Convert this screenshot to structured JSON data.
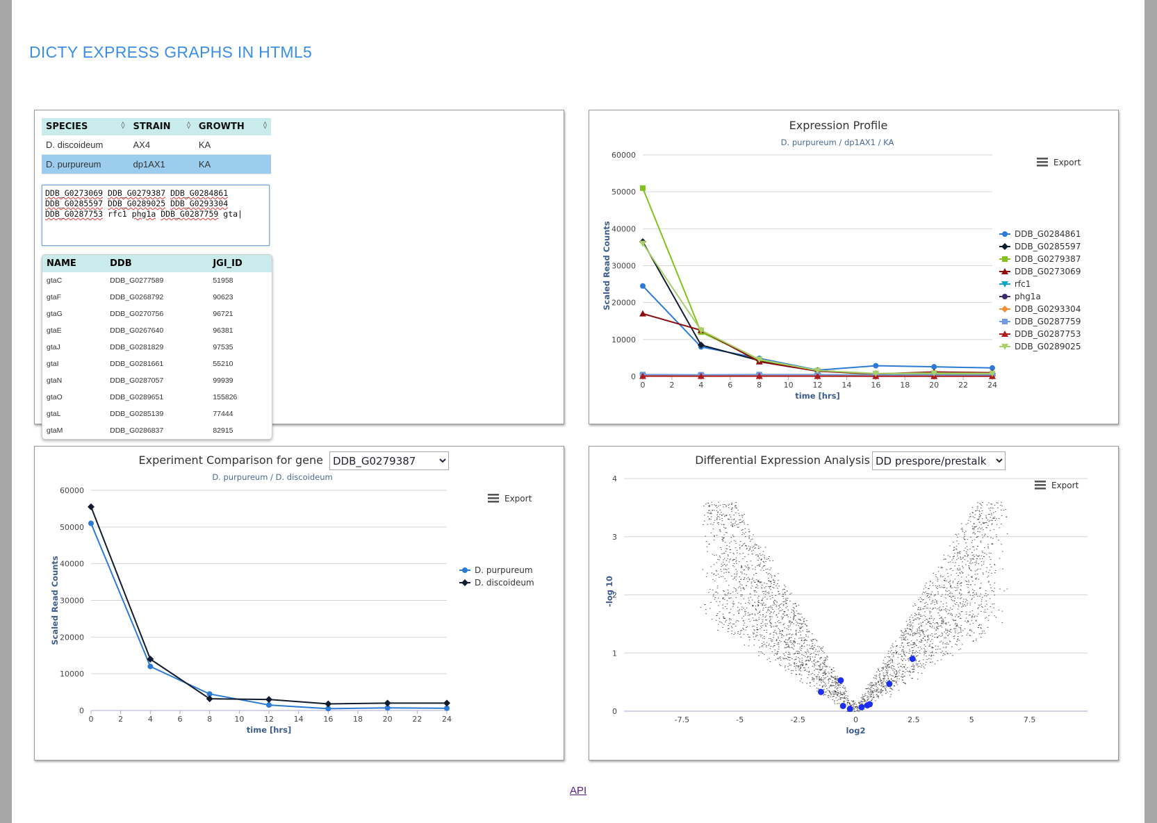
{
  "page": {
    "title": "DICTY EXPRESS GRAPHS IN HTML5",
    "api_link": "API"
  },
  "species_table": {
    "headers": [
      "SPECIES",
      "STRAIN",
      "GROWTH"
    ],
    "rows": [
      {
        "species": "D. discoideum",
        "strain": "AX4",
        "growth": "KA"
      },
      {
        "species": "D. purpureum",
        "strain": "dp1AX1",
        "growth": "KA"
      }
    ],
    "selected_row": 1
  },
  "gene_input": {
    "tokens": [
      "DDB_G0273069",
      "DDB_G0279387",
      "DDB_G0284861",
      "DDB_G0285597",
      "DDB_G0289025",
      "DDB_G0293304",
      "DDB_G0287753",
      "rfc1",
      "phg1a",
      "DDB_G0287759",
      "gta"
    ]
  },
  "gene_suggestions": {
    "headers": [
      "NAME",
      "DDB",
      "JGI_ID"
    ],
    "rows": [
      {
        "name": "gtaC",
        "ddb": "DDB_G0277589",
        "jgi": "51958"
      },
      {
        "name": "gtaF",
        "ddb": "DDB_G0268792",
        "jgi": "90623"
      },
      {
        "name": "gtaG",
        "ddb": "DDB_G0270756",
        "jgi": "96721"
      },
      {
        "name": "gtaE",
        "ddb": "DDB_G0267640",
        "jgi": "96381"
      },
      {
        "name": "gtaJ",
        "ddb": "DDB_G0281829",
        "jgi": "97535"
      },
      {
        "name": "gtaI",
        "ddb": "DDB_G0281661",
        "jgi": "55210"
      },
      {
        "name": "gtaN",
        "ddb": "DDB_G0287057",
        "jgi": "99939"
      },
      {
        "name": "gtaO",
        "ddb": "DDB_G0289651",
        "jgi": "155826"
      },
      {
        "name": "gtaL",
        "ddb": "DDB_G0285139",
        "jgi": "77444"
      },
      {
        "name": "gtaM",
        "ddb": "DDB_G0286837",
        "jgi": "82915"
      }
    ]
  },
  "export_label": "Export",
  "comparison": {
    "title_prefix": "Experiment Comparison for gene",
    "selected_gene": "DDB_G0279387"
  },
  "dea": {
    "title_prefix": "Differential Expression Analysis",
    "selected": "DD prespore/prestalk"
  },
  "colors": {
    "brand": "#3a8ee6",
    "axis_title": "#3b5c8c"
  },
  "chart_data": [
    {
      "type": "line",
      "title": "Expression Profile",
      "subtitle": "D. purpureum / dp1AX1 / KA",
      "xlabel": "time [hrs]",
      "ylabel": "Scaled Read Counts",
      "xlim": [
        0,
        24
      ],
      "ylim": [
        0,
        60000
      ],
      "x_ticks": [
        0,
        2,
        4,
        6,
        8,
        10,
        12,
        14,
        16,
        18,
        20,
        22,
        24
      ],
      "y_ticks": [
        0,
        10000,
        20000,
        30000,
        40000,
        50000,
        60000
      ],
      "x": [
        0,
        4,
        8,
        12,
        16,
        20,
        24
      ],
      "legend": "right",
      "series": [
        {
          "name": "DDB_G0284861",
          "color": "#2b7bd6",
          "marker": "circle",
          "values": [
            24500,
            8000,
            4900,
            1700,
            2900,
            2600,
            2300
          ]
        },
        {
          "name": "DDB_G0285597",
          "color": "#111c2e",
          "marker": "diamond",
          "values": [
            36500,
            8500,
            4300,
            1600,
            700,
            900,
            800
          ]
        },
        {
          "name": "DDB_G0279387",
          "color": "#80c21b",
          "marker": "square",
          "values": [
            51000,
            12000,
            4500,
            1500,
            500,
            700,
            600
          ]
        },
        {
          "name": "DDB_G0273069",
          "color": "#8b0f0f",
          "marker": "triangle",
          "values": [
            17000,
            12500,
            4000,
            1400,
            700,
            1200,
            1000
          ]
        },
        {
          "name": "rfc1",
          "color": "#17a3c8",
          "marker": "triangle-down",
          "values": [
            150,
            130,
            120,
            100,
            90,
            90,
            80
          ]
        },
        {
          "name": "phg1a",
          "color": "#3c2a6b",
          "marker": "circle",
          "values": [
            200,
            180,
            160,
            140,
            120,
            110,
            100
          ]
        },
        {
          "name": "DDB_G0293304",
          "color": "#f28f34",
          "marker": "diamond",
          "values": [
            300,
            250,
            220,
            200,
            180,
            170,
            160
          ]
        },
        {
          "name": "DDB_G0287759",
          "color": "#6f9ae0",
          "marker": "square",
          "values": [
            500,
            450,
            500,
            500,
            400,
            400,
            350
          ]
        },
        {
          "name": "DDB_G0287753",
          "color": "#b01c1c",
          "marker": "triangle",
          "values": [
            80,
            70,
            60,
            60,
            50,
            50,
            50
          ]
        },
        {
          "name": "DDB_G0289025",
          "color": "#a8cf6a",
          "marker": "triangle-down",
          "values": [
            36000,
            12500,
            4600,
            1600,
            800,
            900,
            800
          ]
        }
      ]
    },
    {
      "type": "line",
      "subtitle": "D. purpureum / D. discoideum",
      "xlabel": "time [hrs]",
      "ylabel": "Scaled Read Counts",
      "xlim": [
        0,
        24
      ],
      "ylim": [
        0,
        60000
      ],
      "x_ticks": [
        0,
        2,
        4,
        6,
        8,
        10,
        12,
        14,
        16,
        18,
        20,
        22,
        24
      ],
      "y_ticks": [
        0,
        10000,
        20000,
        30000,
        40000,
        50000,
        60000
      ],
      "x": [
        0,
        4,
        8,
        12,
        16,
        20,
        24
      ],
      "legend": "right",
      "series": [
        {
          "name": "D. purpureum",
          "color": "#2b7bd6",
          "marker": "circle",
          "values": [
            51000,
            12000,
            4500,
            1500,
            500,
            700,
            600
          ]
        },
        {
          "name": "D. discoideum",
          "color": "#111c2e",
          "marker": "diamond",
          "values": [
            55500,
            14000,
            3200,
            3000,
            1800,
            2000,
            2000
          ]
        }
      ]
    },
    {
      "type": "scatter",
      "xlabel": "log2",
      "ylabel": "-log 10",
      "xlim": [
        -10,
        10
      ],
      "ylim": [
        0,
        4
      ],
      "x_ticks": [
        -7.5,
        -5,
        -2.5,
        0,
        2.5,
        5,
        7.5
      ],
      "y_ticks": [
        0,
        1,
        2,
        3,
        4
      ],
      "highlighted_points": [
        {
          "x": -1.5,
          "y": 0.33
        },
        {
          "x": -0.65,
          "y": 0.53
        },
        {
          "x": -0.55,
          "y": 0.09
        },
        {
          "x": -0.25,
          "y": 0.04
        },
        {
          "x": 0.25,
          "y": 0.07
        },
        {
          "x": 0.5,
          "y": 0.1
        },
        {
          "x": 0.6,
          "y": 0.12
        },
        {
          "x": 1.45,
          "y": 0.47
        },
        {
          "x": 2.45,
          "y": 0.9
        }
      ]
    }
  ]
}
